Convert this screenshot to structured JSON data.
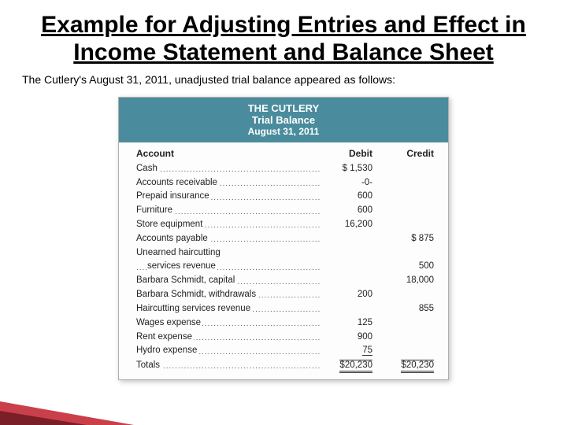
{
  "title": "Example for Adjusting Entries and Effect in Income Statement and Balance Sheet",
  "intro": "The Cutlery's August 31, 2011, unadjusted trial balance appeared as follows:",
  "trialBalance": {
    "headerBg": "#4a8c9d",
    "company": "THE CUTLERY",
    "report": "Trial Balance",
    "date": "August 31, 2011",
    "columns": {
      "account": "Account",
      "debit": "Debit",
      "credit": "Credit"
    },
    "rows": [
      {
        "account": "Cash",
        "debit": "$  1,530",
        "credit": ""
      },
      {
        "account": "Accounts receivable",
        "debit": "-0-",
        "credit": ""
      },
      {
        "account": "Prepaid insurance",
        "debit": "600",
        "credit": ""
      },
      {
        "account": "Furniture",
        "debit": "600",
        "credit": ""
      },
      {
        "account": "Store equipment",
        "debit": "16,200",
        "credit": ""
      },
      {
        "account": "Accounts payable",
        "debit": "",
        "credit": "$      875"
      },
      {
        "account": "Unearned haircutting",
        "debit": "",
        "credit": "",
        "noLeader": true
      },
      {
        "account": "services revenue",
        "debit": "",
        "credit": "500",
        "indent": true
      },
      {
        "account": "Barbara Schmidt, capital",
        "debit": "",
        "credit": "18,000"
      },
      {
        "account": "Barbara Schmidt, withdrawals",
        "debit": "200",
        "credit": ""
      },
      {
        "account": "Haircutting services revenue",
        "debit": "",
        "credit": "855"
      },
      {
        "account": "Wages expense",
        "debit": "125",
        "credit": ""
      },
      {
        "account": "Rent expense",
        "debit": "900",
        "credit": ""
      },
      {
        "account": "Hydro expense",
        "debit": "75",
        "credit": "",
        "ruleBelow": true
      }
    ],
    "totals": {
      "label": "Totals",
      "debit": "$20,230",
      "credit": "$20,230"
    }
  },
  "accent": {
    "color1": "#c9404a",
    "color2": "#7a1f27"
  }
}
